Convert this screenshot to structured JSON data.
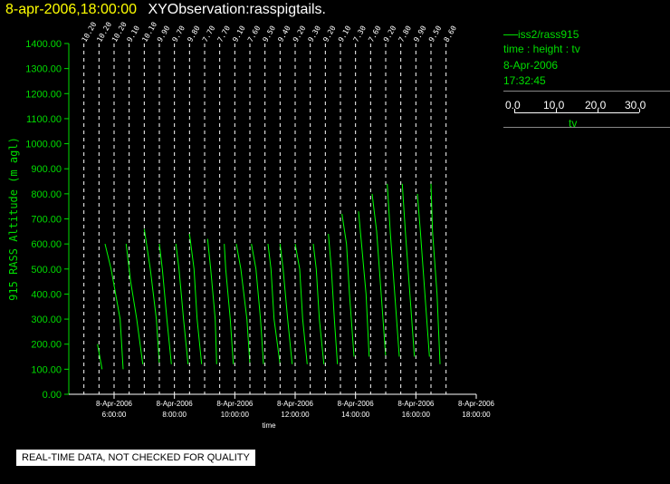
{
  "header": {
    "date": "8-apr-2006,18:00:00",
    "title": "XYObservation:rasspigtails."
  },
  "legend": {
    "series": "iss2/rass915",
    "axes": "time : height : tv",
    "date": "8-Apr-2006",
    "time": "17:32:45",
    "scale_ticks": [
      "0.0",
      "10.0",
      "20.0",
      "30.0"
    ],
    "scale_label": "tv"
  },
  "disclaimer": "REAL-TIME DATA, NOT CHECKED FOR QUALITY",
  "colors": {
    "trace": "#00ff00",
    "axis": "#00dd00",
    "date": "#ffff00",
    "title": "#ffffff"
  },
  "chart_data": {
    "type": "line",
    "xlabel": "time",
    "ylabel": "915 RASS Altitude (m agl)",
    "xlim": [
      4.5,
      18.0
    ],
    "ylim": [
      0,
      1400
    ],
    "yticks": [
      "0.00",
      "100.00",
      "200.00",
      "300.00",
      "400.00",
      "500.00",
      "600.00",
      "700.00",
      "800.00",
      "900.00",
      "1000.00",
      "1100.00",
      "1200.00",
      "1300.00",
      "1400.00"
    ],
    "xticks": [
      {
        "x": 6,
        "date": "8-Apr-2006",
        "time": "6:00:00"
      },
      {
        "x": 8,
        "date": "8-Apr-2006",
        "time": "8:00:00"
      },
      {
        "x": 10,
        "date": "8-Apr-2006",
        "time": "10:00:00"
      },
      {
        "x": 12,
        "date": "8-Apr-2006",
        "time": "12:00:00"
      },
      {
        "x": 14,
        "date": "8-Apr-2006",
        "time": "14:00:00"
      },
      {
        "x": 16,
        "date": "8-Apr-2006",
        "time": "16:00:00"
      },
      {
        "x": 18,
        "date": "8-Apr-2006",
        "time": "18:00:00"
      }
    ],
    "scale_per_hour_tv": 10,
    "profiles": [
      {
        "t": 5.0,
        "label": "10.20",
        "points": []
      },
      {
        "t": 5.5,
        "label": "10.20",
        "points": [
          [
            100,
            1.0
          ],
          [
            200,
            -0.5
          ]
        ]
      },
      {
        "t": 6.0,
        "label": "10.20",
        "points": [
          [
            100,
            3.0
          ],
          [
            300,
            2.0
          ],
          [
            500,
            -1.0
          ],
          [
            600,
            -3.0
          ]
        ]
      },
      {
        "t": 6.5,
        "label": "9.10",
        "points": [
          [
            120,
            4.5
          ],
          [
            300,
            2.5
          ],
          [
            450,
            0.5
          ],
          [
            600,
            -1.0
          ]
        ]
      },
      {
        "t": 7.0,
        "label": "10.10",
        "points": [
          [
            120,
            5.0
          ],
          [
            300,
            4.0
          ],
          [
            500,
            2.0
          ],
          [
            620,
            0.5
          ],
          [
            660,
            0.0
          ]
        ]
      },
      {
        "t": 7.5,
        "label": "9.90",
        "points": [
          [
            120,
            4.0
          ],
          [
            300,
            2.5
          ],
          [
            500,
            1.0
          ],
          [
            600,
            0.0
          ]
        ]
      },
      {
        "t": 8.0,
        "label": "9.70",
        "points": [
          [
            120,
            4.5
          ],
          [
            300,
            3.0
          ],
          [
            500,
            1.5
          ],
          [
            600,
            0.5
          ]
        ]
      },
      {
        "t": 8.5,
        "label": "9.80",
        "points": [
          [
            120,
            4.0
          ],
          [
            300,
            2.5
          ],
          [
            500,
            1.5
          ],
          [
            640,
            0.0
          ]
        ]
      },
      {
        "t": 9.0,
        "label": "7.70",
        "points": [
          [
            120,
            4.0
          ],
          [
            300,
            3.5
          ],
          [
            500,
            2.0
          ],
          [
            620,
            1.0
          ]
        ]
      },
      {
        "t": 9.5,
        "label": "7.70",
        "points": [
          [
            120,
            4.5
          ],
          [
            300,
            3.5
          ],
          [
            500,
            2.0
          ],
          [
            600,
            1.5
          ]
        ]
      },
      {
        "t": 10.0,
        "label": "9.10",
        "points": [
          [
            120,
            5.0
          ],
          [
            300,
            4.0
          ],
          [
            500,
            2.0
          ],
          [
            600,
            0.5
          ]
        ]
      },
      {
        "t": 10.5,
        "label": "7.60",
        "points": [
          [
            120,
            4.5
          ],
          [
            300,
            3.5
          ],
          [
            500,
            2.0
          ],
          [
            600,
            0.5
          ]
        ]
      },
      {
        "t": 11.0,
        "label": "9.50",
        "points": [
          [
            120,
            5.0
          ],
          [
            300,
            3.0
          ],
          [
            500,
            2.0
          ],
          [
            600,
            1.0
          ]
        ]
      },
      {
        "t": 11.5,
        "label": "9.40",
        "points": [
          [
            120,
            4.0
          ],
          [
            300,
            2.5
          ],
          [
            500,
            1.0
          ],
          [
            600,
            0.0
          ]
        ]
      },
      {
        "t": 12.0,
        "label": "9.20",
        "points": [
          [
            120,
            4.0
          ],
          [
            300,
            2.5
          ],
          [
            500,
            1.5
          ],
          [
            600,
            0.0
          ]
        ]
      },
      {
        "t": 12.5,
        "label": "9.30",
        "points": [
          [
            120,
            4.5
          ],
          [
            300,
            3.0
          ],
          [
            500,
            2.0
          ],
          [
            600,
            1.0
          ]
        ]
      },
      {
        "t": 13.0,
        "label": "9.20",
        "points": [
          [
            120,
            4.0
          ],
          [
            300,
            3.0
          ],
          [
            500,
            2.0
          ],
          [
            640,
            1.0
          ]
        ]
      },
      {
        "t": 13.5,
        "label": "9.10",
        "points": [
          [
            150,
            4.5
          ],
          [
            400,
            3.0
          ],
          [
            600,
            2.0
          ],
          [
            720,
            0.5
          ]
        ]
      },
      {
        "t": 14.0,
        "label": "7.30",
        "points": [
          [
            150,
            4.5
          ],
          [
            400,
            3.5
          ],
          [
            600,
            2.0
          ],
          [
            730,
            1.0
          ]
        ]
      },
      {
        "t": 14.5,
        "label": "7.60",
        "points": [
          [
            150,
            5.0
          ],
          [
            400,
            3.5
          ],
          [
            650,
            2.0
          ],
          [
            800,
            0.5
          ]
        ]
      },
      {
        "t": 15.0,
        "label": "9.20",
        "points": [
          [
            150,
            4.5
          ],
          [
            400,
            3.0
          ],
          [
            650,
            1.5
          ],
          [
            840,
            0.5
          ]
        ]
      },
      {
        "t": 15.5,
        "label": "7.80",
        "points": [
          [
            150,
            4.5
          ],
          [
            400,
            3.0
          ],
          [
            650,
            1.5
          ],
          [
            840,
            0.5
          ]
        ]
      },
      {
        "t": 16.0,
        "label": "9.90",
        "points": [
          [
            150,
            4.5
          ],
          [
            400,
            3.0
          ],
          [
            650,
            1.5
          ],
          [
            800,
            0.5
          ]
        ]
      },
      {
        "t": 16.5,
        "label": "9.50",
        "points": [
          [
            120,
            3.0
          ],
          [
            400,
            2.0
          ],
          [
            650,
            0.5
          ],
          [
            840,
            0.0
          ]
        ]
      },
      {
        "t": 17.0,
        "label": "8.60",
        "points": []
      }
    ]
  }
}
